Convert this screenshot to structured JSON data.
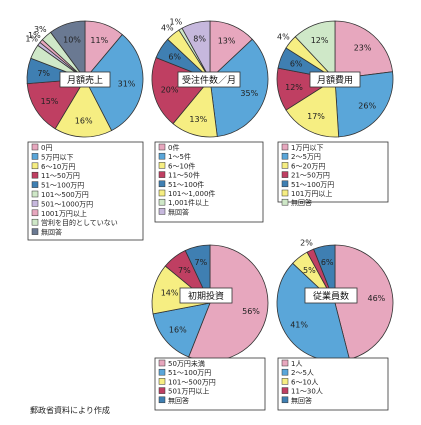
{
  "colors": {
    "pink": "#e7a7be",
    "blue": "#5aa6d9",
    "yellow": "#f6ee82",
    "crimson": "#bf3f62",
    "steel": "#3f7fb2",
    "lightgreen": "#cfe8c8",
    "lavender": "#c6b8dd",
    "slate": "#6a7992",
    "outline": "#333333"
  },
  "footer": "郵政省資料により作成",
  "chart_data": [
    {
      "type": "pie",
      "title": "月額売上",
      "slices": [
        {
          "label": "0円",
          "value": 11,
          "color": "pink",
          "text": "11%"
        },
        {
          "label": "5万円以下",
          "value": 31,
          "color": "blue",
          "text": "31%"
        },
        {
          "label": "6〜10万円",
          "value": 16,
          "color": "yellow",
          "text": "16%"
        },
        {
          "label": "11〜50万円",
          "value": 15,
          "color": "crimson",
          "text": "15%"
        },
        {
          "label": "51〜100万円",
          "value": 7,
          "color": "steel",
          "text": "7%"
        },
        {
          "label": "101〜500万円",
          "value": 4,
          "color": "lightgreen",
          "text": ""
        },
        {
          "label": "501〜1000万円",
          "value": 1,
          "color": "lavender",
          "text": "1%"
        },
        {
          "label": "1001万円以上",
          "value": 1,
          "color": "pink",
          "text": "1%"
        },
        {
          "label": "営利を目的としていない",
          "value": 3,
          "color": "lightgreen",
          "text": "3%"
        },
        {
          "label": "無回答",
          "value": 10,
          "color": "slate",
          "text": "10%"
        }
      ]
    },
    {
      "type": "pie",
      "title": "受注件数／月",
      "slices": [
        {
          "label": "0件",
          "value": 13,
          "color": "pink",
          "text": "13%"
        },
        {
          "label": "1〜5件",
          "value": 35,
          "color": "blue",
          "text": "35%"
        },
        {
          "label": "6〜10件",
          "value": 13,
          "color": "yellow",
          "text": "13%"
        },
        {
          "label": "11〜50件",
          "value": 20,
          "color": "crimson",
          "text": "20%"
        },
        {
          "label": "51〜100件",
          "value": 6,
          "color": "steel",
          "text": "6%"
        },
        {
          "label": "101〜1,000件",
          "value": 4,
          "color": "yellow",
          "text": "4%"
        },
        {
          "label": "1,001件以上",
          "value": 1,
          "color": "lightgreen",
          "text": "1%"
        },
        {
          "label": "無回答",
          "value": 8,
          "color": "lavender",
          "text": "8%"
        }
      ]
    },
    {
      "type": "pie",
      "title": "月額費用",
      "slices": [
        {
          "label": "1万円以下",
          "value": 23,
          "color": "pink",
          "text": "23%"
        },
        {
          "label": "2〜5万円",
          "value": 26,
          "color": "blue",
          "text": "26%"
        },
        {
          "label": "6〜20万円",
          "value": 17,
          "color": "yellow",
          "text": "17%"
        },
        {
          "label": "21〜50万円",
          "value": 12,
          "color": "crimson",
          "text": "12%"
        },
        {
          "label": "51〜100万円",
          "value": 6,
          "color": "steel",
          "text": "6%"
        },
        {
          "label": "101万円以上",
          "value": 4,
          "color": "yellow",
          "text": "4%"
        },
        {
          "label": "無回答",
          "value": 12,
          "color": "lightgreen",
          "text": "12%"
        }
      ]
    },
    {
      "type": "pie",
      "title": "初期投資",
      "slices": [
        {
          "label": "50万円未満",
          "value": 56,
          "color": "pink",
          "text": "56%"
        },
        {
          "label": "51〜100万円",
          "value": 16,
          "color": "blue",
          "text": "16%"
        },
        {
          "label": "101〜500万円",
          "value": 14,
          "color": "yellow",
          "text": "14%"
        },
        {
          "label": "501万円以上",
          "value": 7,
          "color": "crimson",
          "text": "7%"
        },
        {
          "label": "無回答",
          "value": 7,
          "color": "steel",
          "text": "7%"
        }
      ]
    },
    {
      "type": "pie",
      "title": "従業員数",
      "slices": [
        {
          "label": "1人",
          "value": 46,
          "color": "pink",
          "text": "46%"
        },
        {
          "label": "2〜5人",
          "value": 41,
          "color": "blue",
          "text": "41%"
        },
        {
          "label": "6〜10人",
          "value": 5,
          "color": "yellow",
          "text": "5%"
        },
        {
          "label": "11〜30人",
          "value": 2,
          "color": "crimson",
          "text": "2%"
        },
        {
          "label": "無回答",
          "value": 6,
          "color": "steel",
          "text": "6%"
        }
      ]
    }
  ]
}
